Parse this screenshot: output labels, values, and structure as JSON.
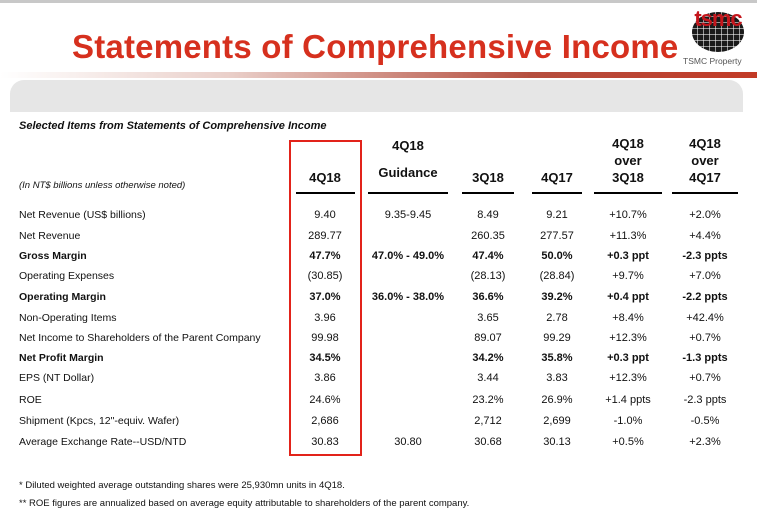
{
  "header": {
    "title": "Statements of Comprehensive Income",
    "logo_text": "tsmc",
    "logo_subtitle": "TSMC Property"
  },
  "table": {
    "section_title": "Selected Items from Statements of Comprehensive Income",
    "units_note": "(In NT$ billions unless otherwise noted)",
    "columns": [
      {
        "lines": [
          "4Q18"
        ]
      },
      {
        "lines": [
          "4Q18",
          "Guidance"
        ]
      },
      {
        "lines": [
          "3Q18"
        ]
      },
      {
        "lines": [
          "4Q17"
        ]
      },
      {
        "lines": [
          "4Q18",
          "over",
          "3Q18"
        ]
      },
      {
        "lines": [
          "4Q18",
          "over",
          "4Q17"
        ]
      }
    ],
    "rows": [
      {
        "label": "Net Revenue (US$ billions)",
        "bold": false,
        "cells": [
          "9.40",
          "9.35-9.45",
          "8.49",
          "9.21",
          "+10.7%",
          "+2.0%"
        ]
      },
      {
        "label": "Net Revenue",
        "bold": false,
        "cells": [
          "289.77",
          "",
          "260.35",
          "277.57",
          "+11.3%",
          "+4.4%"
        ]
      },
      {
        "label": "Gross Margin",
        "bold": true,
        "cells": [
          "47.7%",
          "47.0% - 49.0%",
          "47.4%",
          "50.0%",
          "+0.3 ppt",
          "-2.3 ppts"
        ]
      },
      {
        "label": "Operating Expenses",
        "bold": false,
        "cells": [
          "(30.85)",
          "",
          "(28.13)",
          "(28.84)",
          "+9.7%",
          "+7.0%"
        ]
      },
      {
        "label": "Operating Margin",
        "bold": true,
        "cells": [
          "37.0%",
          "36.0% - 38.0%",
          "36.6%",
          "39.2%",
          "+0.4 ppt",
          "-2.2 ppts"
        ]
      },
      {
        "label": "Non-Operating Items",
        "bold": false,
        "cells": [
          "3.96",
          "",
          "3.65",
          "2.78",
          "+8.4%",
          "+42.4%"
        ]
      },
      {
        "label": "Net Income to Shareholders of the Parent Company",
        "bold": false,
        "cells": [
          "99.98",
          "",
          "89.07",
          "99.29",
          "+12.3%",
          "+0.7%"
        ]
      },
      {
        "label": "Net Profit Margin",
        "bold": true,
        "cells": [
          "34.5%",
          "",
          "34.2%",
          "35.8%",
          "+0.3 ppt",
          "-1.3 ppts"
        ]
      },
      {
        "label": "EPS (NT Dollar)",
        "bold": false,
        "cells": [
          "3.86",
          "",
          "3.44",
          "3.83",
          "+12.3%",
          "+0.7%"
        ]
      },
      {
        "label": "ROE",
        "bold": false,
        "cells": [
          "24.6%",
          "",
          "23.2%",
          "26.9%",
          "+1.4 ppts",
          "-2.3 ppts"
        ]
      },
      {
        "label": "Shipment (Kpcs, 12\"-equiv. Wafer)",
        "bold": false,
        "cells": [
          "2,686",
          "",
          "2,712",
          "2,699",
          "-1.0%",
          "-0.5%"
        ]
      },
      {
        "label": "Average Exchange Rate--USD/NTD",
        "bold": false,
        "cells": [
          "30.83",
          "30.80",
          "30.68",
          "30.13",
          "+0.5%",
          "+2.3%"
        ]
      }
    ]
  },
  "footnotes": [
    "*   Diluted weighted average outstanding shares were 25,930mn units in 4Q18.",
    "**  ROE figures are annualized based on average equity attributable to shareholders of the parent company."
  ],
  "colors": {
    "title_red": "#d6301e",
    "highlight_red": "#e2231a",
    "logo_red": "#c4161c",
    "panel_gray": "#e6e6e6"
  }
}
